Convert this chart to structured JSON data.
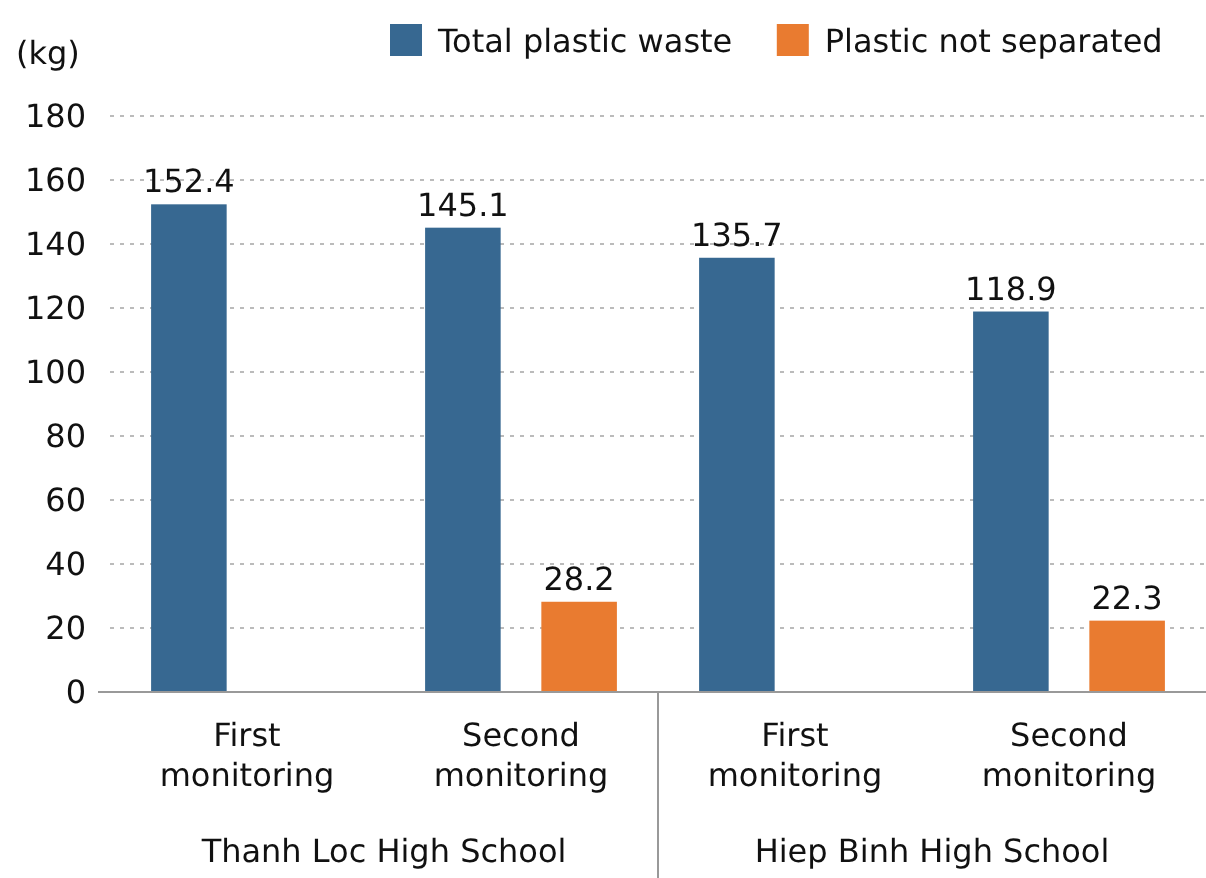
{
  "chart_data": {
    "type": "bar",
    "ylabel": "(kg)",
    "categories": [
      "First monitoring",
      "Second monitoring",
      "First monitoring",
      "Second monitoring"
    ],
    "series": [
      {
        "name": "Total plastic waste",
        "color": "#376891",
        "values": [
          152.4,
          145.1,
          135.7,
          118.9
        ]
      },
      {
        "name": "Plastic not separated",
        "color": "#e97b30",
        "values": [
          null,
          28.2,
          null,
          22.3
        ]
      }
    ],
    "ylim": [
      0,
      180
    ],
    "yticks": [
      0,
      20,
      40,
      60,
      80,
      100,
      120,
      140,
      160,
      180
    ],
    "grid": "y",
    "legend": "top right",
    "data_labels": true,
    "annotations": [
      "Thanh Loc High School",
      "Hiep Binh High School"
    ]
  }
}
